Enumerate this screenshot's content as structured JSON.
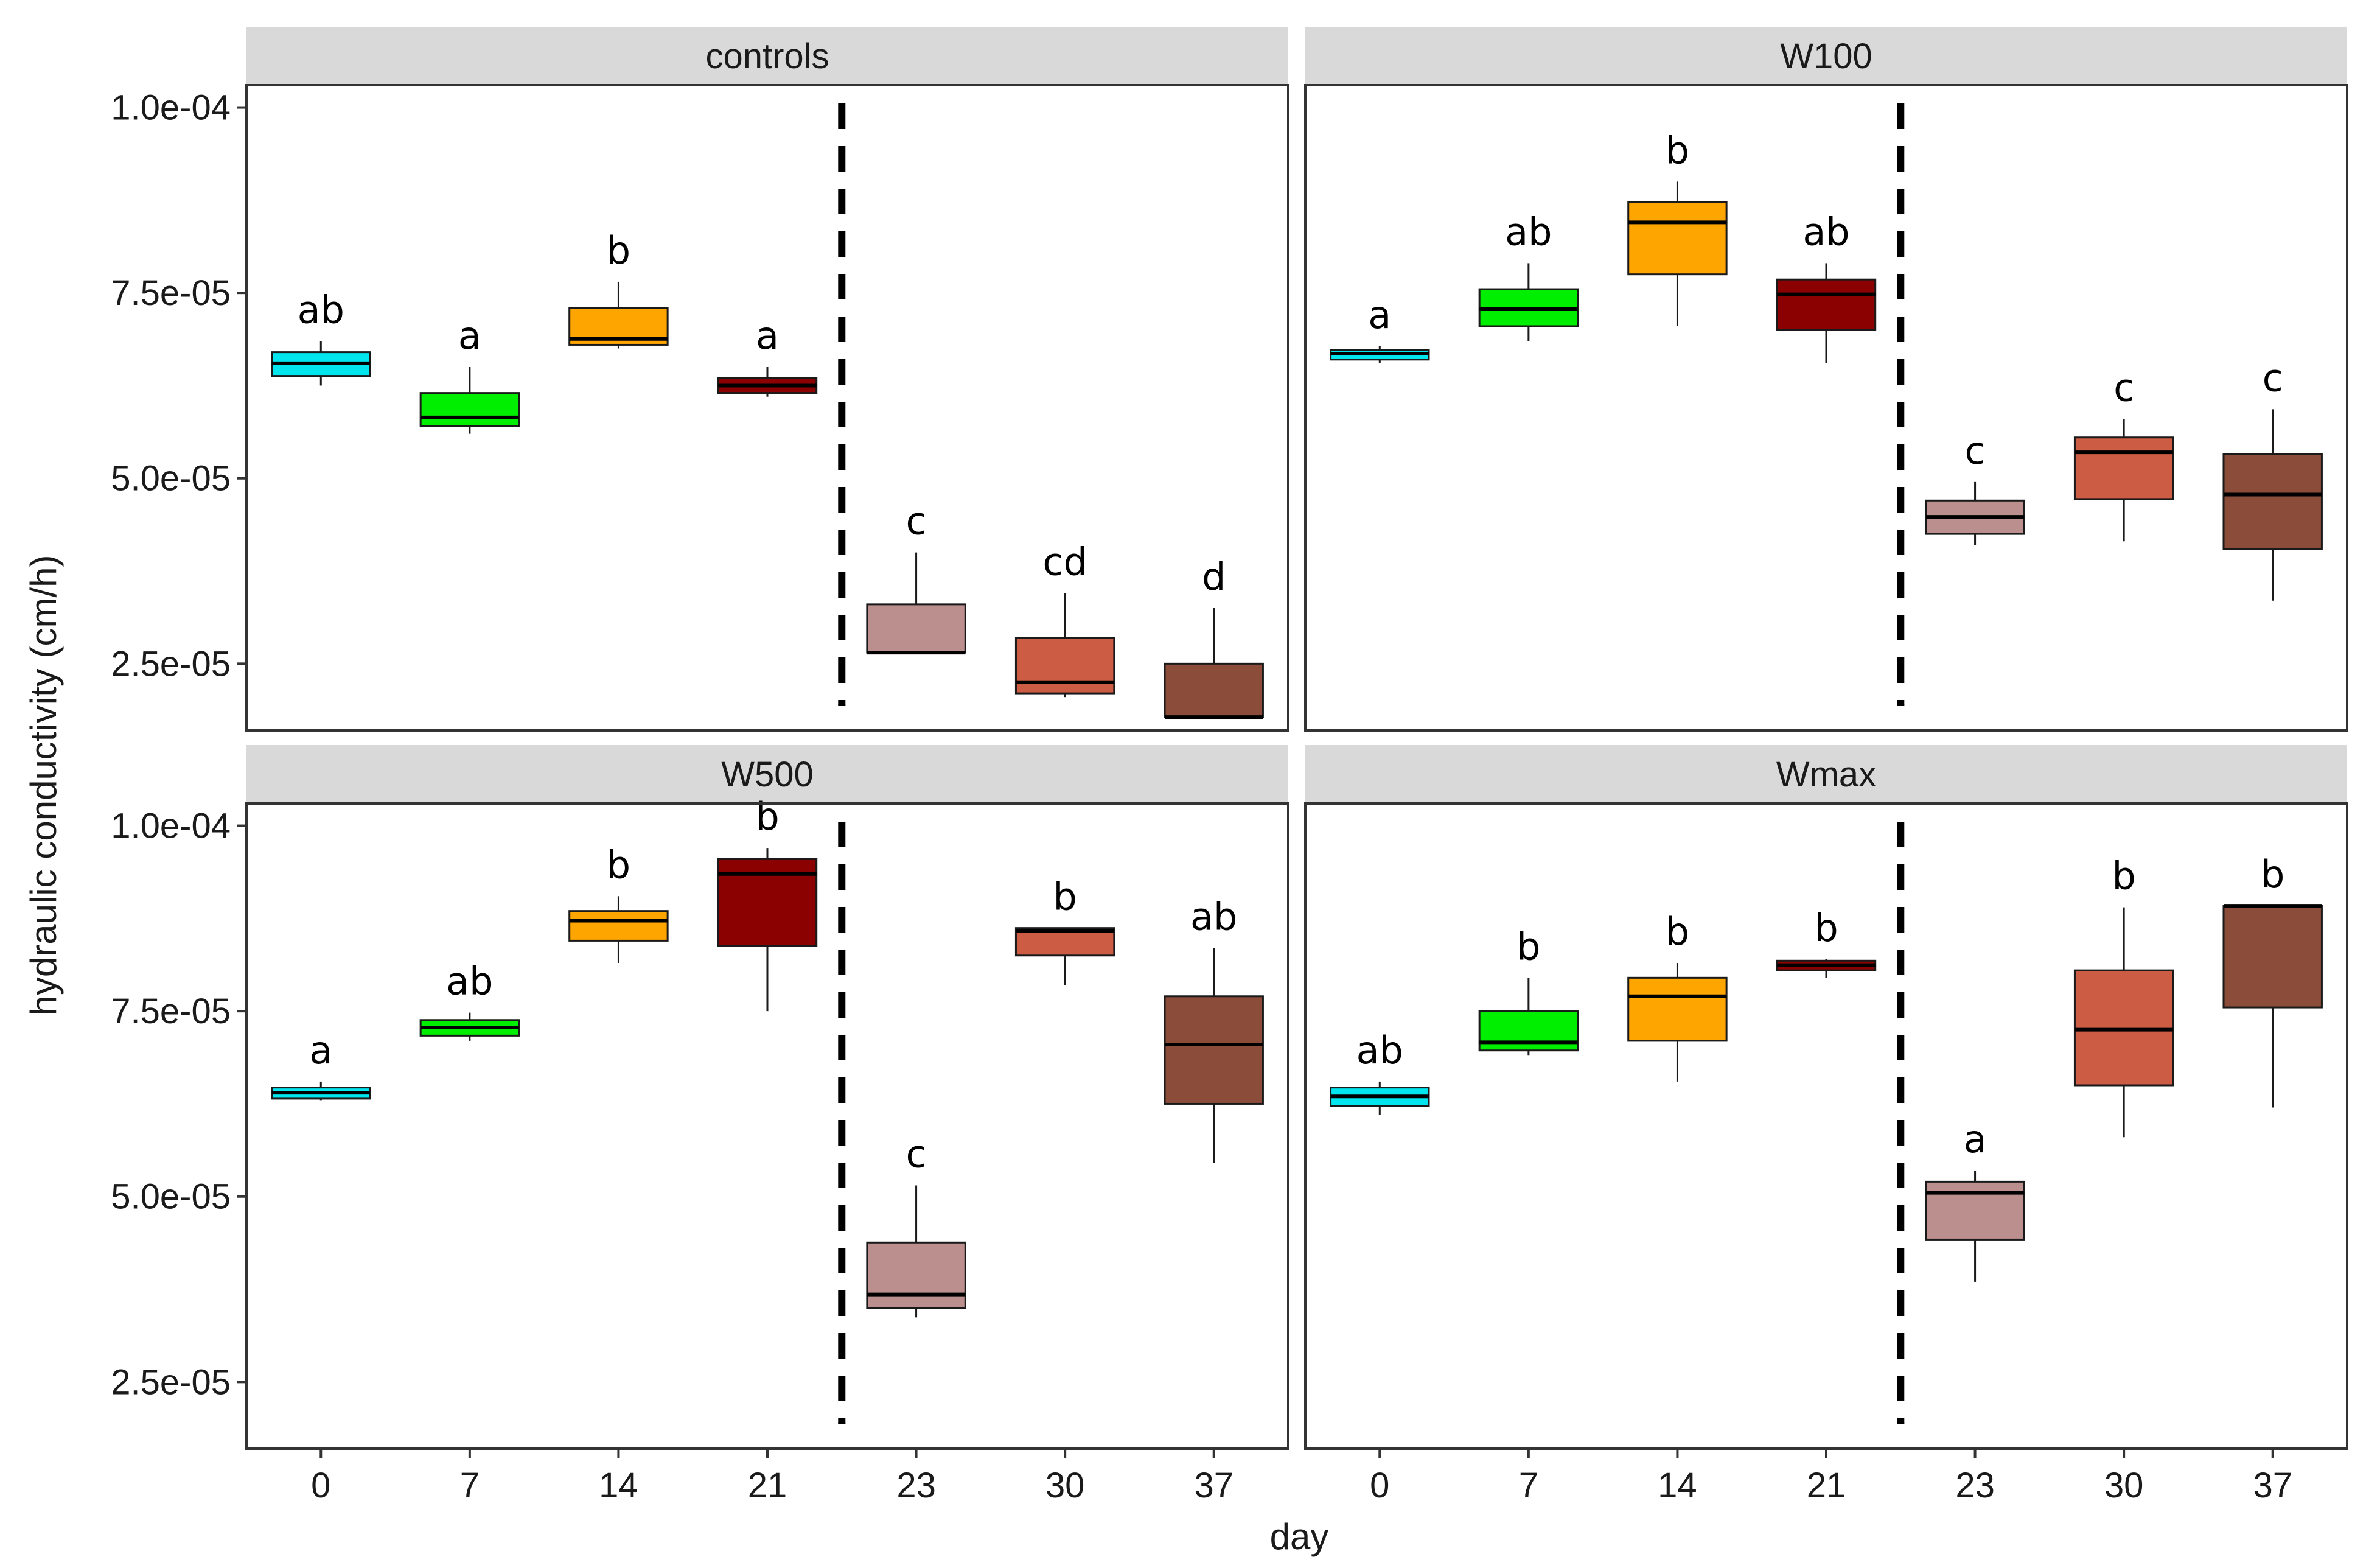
{
  "chart_data": {
    "type": "boxplot",
    "layout": "facet-grid 2x2",
    "xlabel": "day",
    "ylabel": "hydraulic conductivity (cm/h)",
    "ylim": [
      1.6e-05,
      0.000103
    ],
    "y_ticks": [
      2.5e-05,
      5e-05,
      7.5e-05,
      0.0001
    ],
    "y_tick_labels": [
      "2.5e-05",
      "5.0e-05",
      "7.5e-05",
      "1.0e-04"
    ],
    "x_categories": [
      "0",
      "7",
      "14",
      "21",
      "23",
      "30",
      "37"
    ],
    "divider_between": [
      "21",
      "23"
    ],
    "colors": [
      "#00E5EE",
      "#00EE00",
      "#FFA500",
      "#8B0000",
      "#BC8F8F",
      "#CD5C45",
      "#8B4C39"
    ],
    "panels": [
      {
        "title": "controls",
        "boxes": [
          {
            "day": "0",
            "min": 6.25e-05,
            "q1": 6.38e-05,
            "median": 6.55e-05,
            "q3": 6.7e-05,
            "max": 6.85e-05,
            "letter": "ab"
          },
          {
            "day": "7",
            "min": 5.6e-05,
            "q1": 5.7e-05,
            "median": 5.82e-05,
            "q3": 6.15e-05,
            "max": 6.5e-05,
            "letter": "a"
          },
          {
            "day": "14",
            "min": 6.75e-05,
            "q1": 6.8e-05,
            "median": 6.88e-05,
            "q3": 7.3e-05,
            "max": 7.65e-05,
            "letter": "b"
          },
          {
            "day": "21",
            "min": 6.1e-05,
            "q1": 6.15e-05,
            "median": 6.25e-05,
            "q3": 6.35e-05,
            "max": 6.5e-05,
            "letter": "a"
          },
          {
            "day": "23",
            "min": 2.65e-05,
            "q1": 2.65e-05,
            "median": 2.65e-05,
            "q3": 3.3e-05,
            "max": 4e-05,
            "letter": "c"
          },
          {
            "day": "30",
            "min": 2.05e-05,
            "q1": 2.1e-05,
            "median": 2.25e-05,
            "q3": 2.85e-05,
            "max": 3.45e-05,
            "letter": "cd"
          },
          {
            "day": "37",
            "min": 1.75e-05,
            "q1": 1.78e-05,
            "median": 1.78e-05,
            "q3": 2.5e-05,
            "max": 3.25e-05,
            "letter": "d"
          }
        ]
      },
      {
        "title": "W100",
        "boxes": [
          {
            "day": "0",
            "min": 6.55e-05,
            "q1": 6.6e-05,
            "median": 6.68e-05,
            "q3": 6.73e-05,
            "max": 6.78e-05,
            "letter": "a"
          },
          {
            "day": "7",
            "min": 6.85e-05,
            "q1": 7.05e-05,
            "median": 7.28e-05,
            "q3": 7.55e-05,
            "max": 7.9e-05,
            "letter": "ab"
          },
          {
            "day": "14",
            "min": 7.05e-05,
            "q1": 7.75e-05,
            "median": 8.45e-05,
            "q3": 8.72e-05,
            "max": 9e-05,
            "letter": "b"
          },
          {
            "day": "21",
            "min": 6.55e-05,
            "q1": 7e-05,
            "median": 7.48e-05,
            "q3": 7.68e-05,
            "max": 7.9e-05,
            "letter": "ab"
          },
          {
            "day": "23",
            "min": 4.1e-05,
            "q1": 4.25e-05,
            "median": 4.48e-05,
            "q3": 4.7e-05,
            "max": 4.95e-05,
            "letter": "c"
          },
          {
            "day": "30",
            "min": 4.15e-05,
            "q1": 4.72e-05,
            "median": 5.35e-05,
            "q3": 5.55e-05,
            "max": 5.8e-05,
            "letter": "c"
          },
          {
            "day": "37",
            "min": 3.35e-05,
            "q1": 4.05e-05,
            "median": 4.78e-05,
            "q3": 5.33e-05,
            "max": 5.93e-05,
            "letter": "c"
          }
        ]
      },
      {
        "title": "W500",
        "boxes": [
          {
            "day": "0",
            "min": 6.3e-05,
            "q1": 6.32e-05,
            "median": 6.4e-05,
            "q3": 6.47e-05,
            "max": 6.55e-05,
            "letter": "a"
          },
          {
            "day": "7",
            "min": 7.1e-05,
            "q1": 7.17e-05,
            "median": 7.28e-05,
            "q3": 7.38e-05,
            "max": 7.48e-05,
            "letter": "ab"
          },
          {
            "day": "14",
            "min": 8.15e-05,
            "q1": 8.45e-05,
            "median": 8.72e-05,
            "q3": 8.85e-05,
            "max": 9.05e-05,
            "letter": "b"
          },
          {
            "day": "21",
            "min": 7.5e-05,
            "q1": 8.38e-05,
            "median": 9.35e-05,
            "q3": 9.55e-05,
            "max": 9.7e-05,
            "letter": "b"
          },
          {
            "day": "23",
            "min": 3.37e-05,
            "q1": 3.5e-05,
            "median": 3.68e-05,
            "q3": 4.38e-05,
            "max": 5.15e-05,
            "letter": "c"
          },
          {
            "day": "30",
            "min": 7.85e-05,
            "q1": 8.25e-05,
            "median": 8.58e-05,
            "q3": 8.62e-05,
            "max": 8.62e-05,
            "letter": "b"
          },
          {
            "day": "37",
            "min": 5.45e-05,
            "q1": 6.25e-05,
            "median": 7.05e-05,
            "q3": 7.7e-05,
            "max": 8.35e-05,
            "letter": "ab"
          }
        ]
      },
      {
        "title": "Wmax",
        "boxes": [
          {
            "day": "0",
            "min": 6.1e-05,
            "q1": 6.22e-05,
            "median": 6.35e-05,
            "q3": 6.47e-05,
            "max": 6.55e-05,
            "letter": "ab"
          },
          {
            "day": "7",
            "min": 6.9e-05,
            "q1": 6.97e-05,
            "median": 7.08e-05,
            "q3": 7.5e-05,
            "max": 7.95e-05,
            "letter": "b"
          },
          {
            "day": "14",
            "min": 6.55e-05,
            "q1": 7.1e-05,
            "median": 7.7e-05,
            "q3": 7.95e-05,
            "max": 8.15e-05,
            "letter": "b"
          },
          {
            "day": "21",
            "min": 7.95e-05,
            "q1": 8.05e-05,
            "median": 8.12e-05,
            "q3": 8.18e-05,
            "max": 8.2e-05,
            "letter": "b"
          },
          {
            "day": "23",
            "min": 3.85e-05,
            "q1": 4.42e-05,
            "median": 5.05e-05,
            "q3": 5.2e-05,
            "max": 5.35e-05,
            "letter": "a"
          },
          {
            "day": "30",
            "min": 5.8e-05,
            "q1": 6.5e-05,
            "median": 7.25e-05,
            "q3": 8.05e-05,
            "max": 8.9e-05,
            "letter": "b"
          },
          {
            "day": "37",
            "min": 6.2e-05,
            "q1": 7.55e-05,
            "median": 8.92e-05,
            "q3": 8.92e-05,
            "max": 8.92e-05,
            "letter": "b"
          }
        ]
      }
    ]
  }
}
